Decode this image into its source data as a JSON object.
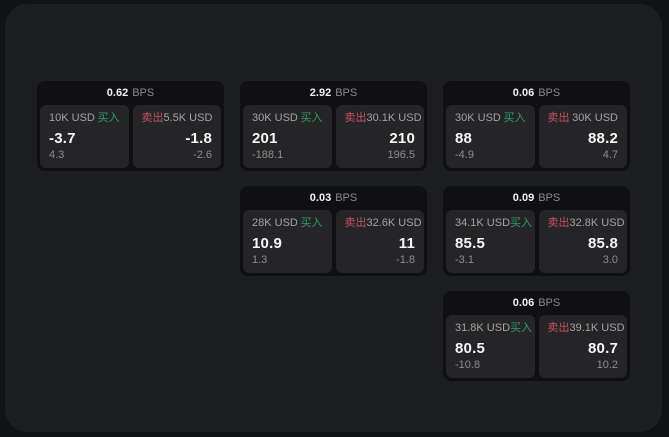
{
  "labels": {
    "bps_unit": "BPS",
    "buy_label": "买入",
    "sell_label": "卖出"
  },
  "colors": {
    "page_bg": "#111214",
    "panel_bg": "#1d1e1f",
    "card_bg": "#101012",
    "tile_bg": "#252527",
    "text_white": "#f5f5f5",
    "text_gray": "#a3a3a3",
    "text_dim": "#8d8d8d",
    "buy_green": "#2f9e68",
    "sell_red": "#c9505f"
  },
  "cards": [
    {
      "row": 1,
      "col": 1,
      "bps": "0.62",
      "buy": {
        "amount": "10K USD",
        "side_label": "买入",
        "price": "-3.7",
        "change": "4.3"
      },
      "sell": {
        "amount": "5.5K USD",
        "side_label": "卖出",
        "price": "-1.8",
        "change": "-2.6"
      }
    },
    {
      "row": 1,
      "col": 2,
      "bps": "2.92",
      "buy": {
        "amount": "30K USD",
        "side_label": "买入",
        "price": "201",
        "change": "-188.1"
      },
      "sell": {
        "amount": "30.1K USD",
        "side_label": "卖出",
        "price": "210",
        "change": "196.5"
      }
    },
    {
      "row": 1,
      "col": 3,
      "bps": "0.06",
      "buy": {
        "amount": "30K USD",
        "side_label": "买入",
        "price": "88",
        "change": "-4.9"
      },
      "sell": {
        "amount": "30K USD",
        "side_label": "卖出",
        "price": "88.2",
        "change": "4.7"
      }
    },
    {
      "row": 2,
      "col": 2,
      "bps": "0.03",
      "buy": {
        "amount": "28K USD",
        "side_label": "买入",
        "price": "10.9",
        "change": "1.3"
      },
      "sell": {
        "amount": "32.6K USD",
        "side_label": "卖出",
        "price": "11",
        "change": "-1.8"
      }
    },
    {
      "row": 2,
      "col": 3,
      "bps": "0.09",
      "buy": {
        "amount": "34.1K USD",
        "side_label": "买入",
        "price": "85.5",
        "change": "-3.1"
      },
      "sell": {
        "amount": "32.8K USD",
        "side_label": "卖出",
        "price": "85.8",
        "change": "3.0"
      }
    },
    {
      "row": 3,
      "col": 3,
      "bps": "0.06",
      "buy": {
        "amount": "31.8K USD",
        "side_label": "买入",
        "price": "80.5",
        "change": "-10.8"
      },
      "sell": {
        "amount": "39.1K USD",
        "side_label": "卖出",
        "price": "80.7",
        "change": "10.2"
      }
    }
  ]
}
